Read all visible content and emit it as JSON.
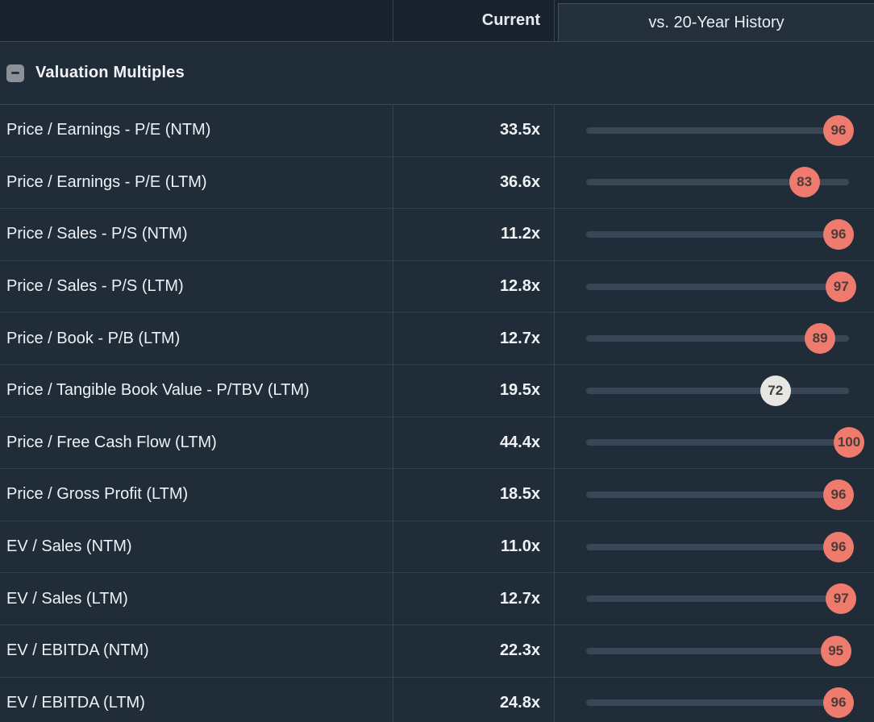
{
  "header": {
    "current_label": "Current",
    "history_label": "vs. 20-Year History"
  },
  "section": {
    "title": "Valuation Multiples",
    "collapse_icon": "minus-icon",
    "collapsed": false
  },
  "colors": {
    "background": "#212c39",
    "header_background": "#19232e",
    "track": "#3a4656",
    "badge_hot": "#ee7b6e",
    "badge_neutral": "#e8e6e2",
    "divider": "#35424f"
  },
  "rows": [
    {
      "label": "Price / Earnings - P/E (NTM)",
      "current": "33.5x",
      "percentile": 96,
      "badge": "hot"
    },
    {
      "label": "Price / Earnings - P/E (LTM)",
      "current": "36.6x",
      "percentile": 83,
      "badge": "hot"
    },
    {
      "label": "Price / Sales - P/S (NTM)",
      "current": "11.2x",
      "percentile": 96,
      "badge": "hot"
    },
    {
      "label": "Price / Sales - P/S (LTM)",
      "current": "12.8x",
      "percentile": 97,
      "badge": "hot"
    },
    {
      "label": "Price / Book - P/B (LTM)",
      "current": "12.7x",
      "percentile": 89,
      "badge": "hot"
    },
    {
      "label": "Price / Tangible Book Value - P/TBV (LTM)",
      "current": "19.5x",
      "percentile": 72,
      "badge": "neutral"
    },
    {
      "label": "Price / Free Cash Flow (LTM)",
      "current": "44.4x",
      "percentile": 100,
      "badge": "hot"
    },
    {
      "label": "Price / Gross Profit (LTM)",
      "current": "18.5x",
      "percentile": 96,
      "badge": "hot"
    },
    {
      "label": "EV / Sales (NTM)",
      "current": "11.0x",
      "percentile": 96,
      "badge": "hot"
    },
    {
      "label": "EV / Sales (LTM)",
      "current": "12.7x",
      "percentile": 97,
      "badge": "hot"
    },
    {
      "label": "EV / EBITDA (NTM)",
      "current": "22.3x",
      "percentile": 95,
      "badge": "hot"
    },
    {
      "label": "EV / EBITDA (LTM)",
      "current": "24.8x",
      "percentile": 96,
      "badge": "hot"
    }
  ]
}
